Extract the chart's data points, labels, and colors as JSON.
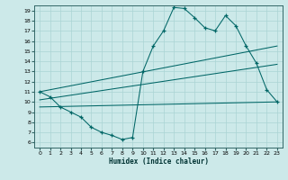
{
  "title": "",
  "xlabel": "Humidex (Indice chaleur)",
  "ylabel": "",
  "bg_color": "#cce9e9",
  "line_color": "#006666",
  "grid_color": "#aad4d4",
  "xlim": [
    -0.5,
    23.5
  ],
  "ylim": [
    5.5,
    19.5
  ],
  "xticks": [
    0,
    1,
    2,
    3,
    4,
    5,
    6,
    7,
    8,
    9,
    10,
    11,
    12,
    13,
    14,
    15,
    16,
    17,
    18,
    19,
    20,
    21,
    22,
    23
  ],
  "yticks": [
    6,
    7,
    8,
    9,
    10,
    11,
    12,
    13,
    14,
    15,
    16,
    17,
    18,
    19
  ],
  "line1_x": [
    0,
    1,
    2,
    3,
    4,
    5,
    6,
    7,
    8,
    9,
    10,
    11,
    12,
    13,
    14,
    15,
    16,
    17,
    18,
    19,
    20,
    21,
    22,
    23
  ],
  "line1_y": [
    11.0,
    10.5,
    9.5,
    9.0,
    8.5,
    7.5,
    7.0,
    6.7,
    6.3,
    6.5,
    13.0,
    15.5,
    17.0,
    19.3,
    19.2,
    18.3,
    17.3,
    17.0,
    18.5,
    17.5,
    15.5,
    13.8,
    11.2,
    10.0
  ],
  "line2_x": [
    0,
    23
  ],
  "line2_y": [
    11.0,
    15.5
  ],
  "line3_x": [
    0,
    23
  ],
  "line3_y": [
    10.2,
    13.7
  ],
  "line4_x": [
    0,
    23
  ],
  "line4_y": [
    9.5,
    10.0
  ]
}
